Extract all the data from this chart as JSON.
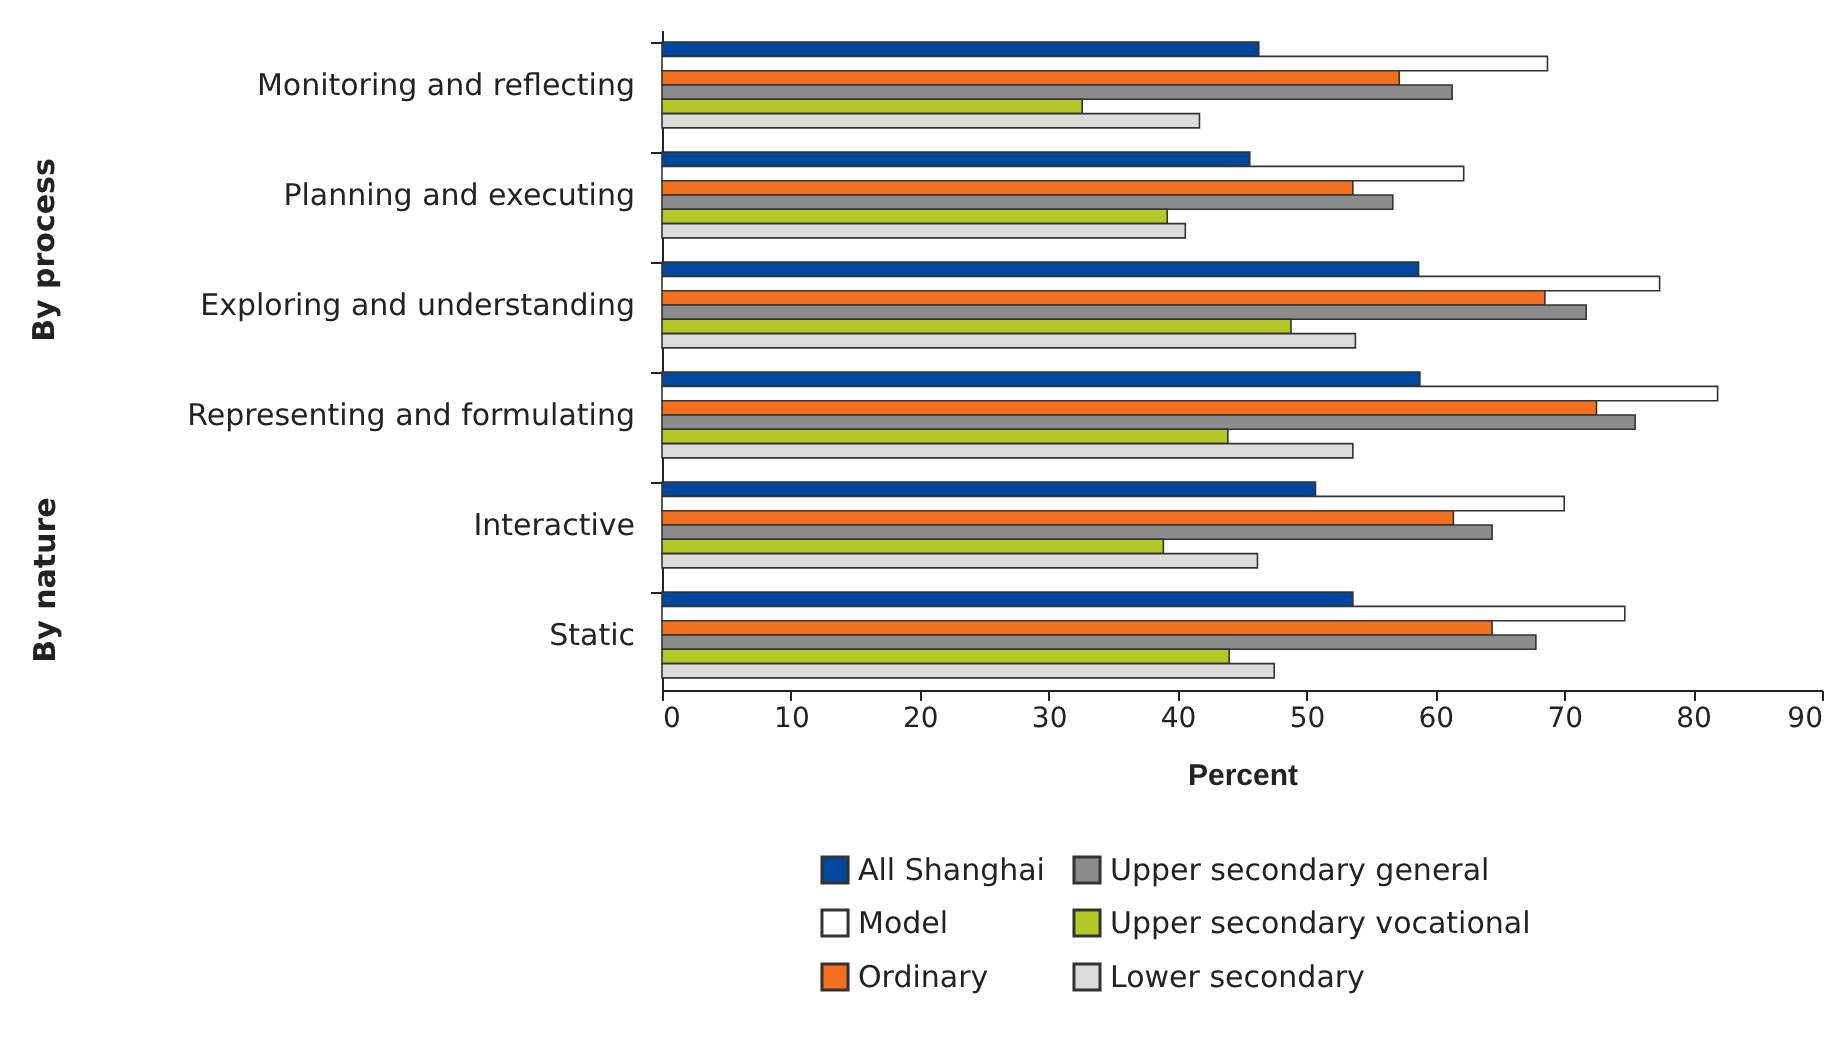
{
  "chart_data": {
    "type": "bar",
    "orientation": "horizontal",
    "xlabel": "Percent",
    "categories": [
      "Monitoring and reflecting",
      "Planning and executing",
      "Exploring and understanding",
      "Representing and formulating",
      "Interactive",
      "Static"
    ],
    "series": [
      {
        "name": "All Shanghai",
        "color": "#0047a0",
        "values": [
          46.3,
          45.6,
          58.7,
          58.8,
          50.7,
          53.6
        ]
      },
      {
        "name": "Model",
        "color": "#ffffff",
        "values": [
          68.7,
          62.2,
          77.4,
          81.9,
          70.0,
          74.7
        ]
      },
      {
        "name": "Ordinary",
        "color": "#f37021",
        "values": [
          57.2,
          53.6,
          68.5,
          72.5,
          61.4,
          64.4
        ]
      },
      {
        "name": "Upper secondary general",
        "color": "#8c8c8c",
        "values": [
          61.3,
          56.7,
          71.7,
          75.5,
          64.4,
          67.8
        ]
      },
      {
        "name": "Upper secondary vocational",
        "color": "#b5c827",
        "values": [
          32.6,
          39.2,
          48.8,
          43.9,
          38.9,
          44.0
        ]
      },
      {
        "name": "Lower secondary",
        "color": "#dcdcdc",
        "values": [
          41.7,
          40.6,
          53.8,
          53.6,
          46.2,
          47.5
        ]
      }
    ],
    "xlim": [
      0,
      90
    ],
    "xticks": [
      0,
      10,
      20,
      30,
      40,
      50,
      60,
      70,
      80,
      90
    ],
    "grid": false,
    "legend": "bottom",
    "annotations": [
      "By process",
      "By nature"
    ]
  }
}
